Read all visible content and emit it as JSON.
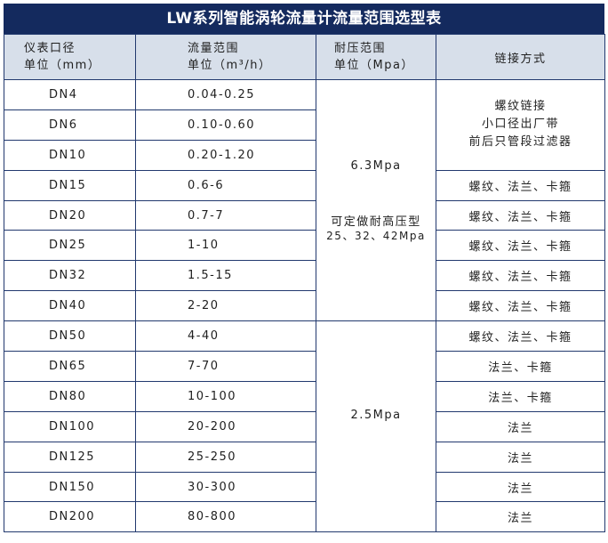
{
  "title": "LW系列智能涡轮流量计流量范围选型表",
  "headers": {
    "size": [
      "仪表口径",
      "单位（mm）"
    ],
    "flow": [
      "流量范围",
      "单位（m³/h）"
    ],
    "pressure": [
      "耐压范围",
      "单位（Mpa）"
    ],
    "connection": "链接方式"
  },
  "rows": [
    {
      "size": "DN4",
      "flow": "0.04-0.25"
    },
    {
      "size": "DN6",
      "flow": "0.10-0.60"
    },
    {
      "size": "DN10",
      "flow": "0.20-1.20"
    },
    {
      "size": "DN15",
      "flow": "0.6-6"
    },
    {
      "size": "DN20",
      "flow": "0.7-7"
    },
    {
      "size": "DN25",
      "flow": "1-10"
    },
    {
      "size": "DN32",
      "flow": "1.5-15"
    },
    {
      "size": "DN40",
      "flow": "2-20"
    },
    {
      "size": "DN50",
      "flow": "4-40"
    },
    {
      "size": "DN65",
      "flow": "7-70"
    },
    {
      "size": "DN80",
      "flow": "10-100"
    },
    {
      "size": "DN100",
      "flow": "20-200"
    },
    {
      "size": "DN125",
      "flow": "25-250"
    },
    {
      "size": "DN150",
      "flow": "30-300"
    },
    {
      "size": "DN200",
      "flow": "80-800"
    }
  ],
  "pressure_groups": [
    {
      "value": "6.3Mpa",
      "note": "可定做耐高压型",
      "note2": "25、32、42Mpa"
    },
    {
      "value": "2.5Mpa"
    }
  ],
  "connections": {
    "small": [
      "螺纹链接",
      "小口径出厂带",
      "前后只管段过滤器"
    ],
    "rows": [
      "螺纹、法兰、卡箍",
      "螺纹、法兰、卡箍",
      "螺纹、法兰、卡箍",
      "螺纹、法兰、卡箍",
      "螺纹、法兰、卡箍",
      "螺纹、法兰、卡箍",
      "法兰、卡箍",
      "法兰、卡箍",
      "法兰",
      "法兰",
      "法兰",
      "法兰"
    ]
  },
  "colors": {
    "title_bg": "#142a5e",
    "header_bg": "#d7dfea",
    "border": "#22396e"
  }
}
